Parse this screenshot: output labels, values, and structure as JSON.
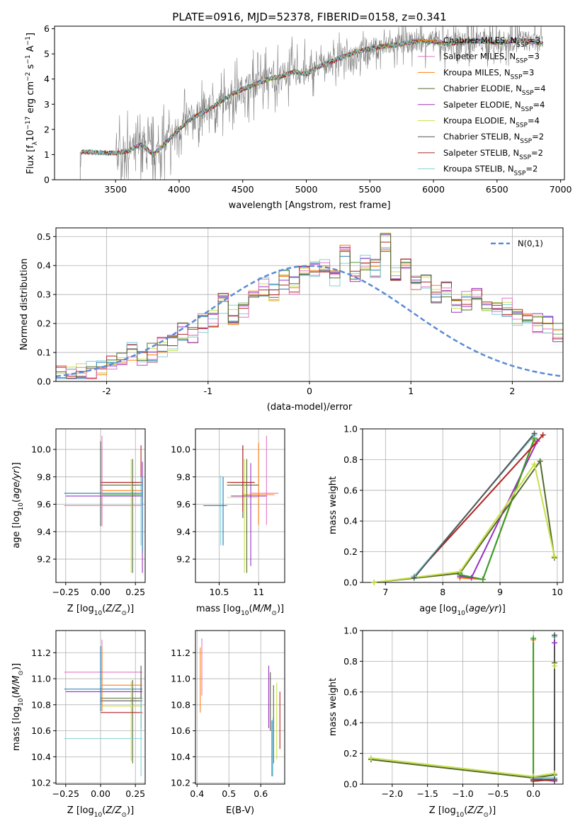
{
  "colors": {
    "series": [
      "#2ca02c",
      "#ff7f0e",
      "#1f77b4",
      "#556b2f",
      "#9b30c0",
      "#c8e04a",
      "#555555",
      "#b22222",
      "#80d0d8"
    ],
    "pink": "#e377c2",
    "observed": "#808080",
    "normal": "#5b8bd6"
  },
  "chart_data": [
    {
      "name": "spectrum",
      "type": "line",
      "title": "PLATE=0916, MJD=52378, FIBERID=0158, z=0.341",
      "xlabel": "wavelength [Angstrom, rest frame]",
      "ylabel": "Flux [f_λ 10^-17 erg cm^-2 s^-1 A^-1]",
      "xlim": [
        3020,
        7030
      ],
      "ylim": [
        0,
        6.1
      ],
      "xticks": [
        3500,
        4000,
        4500,
        5000,
        5500,
        6000,
        6500,
        7000
      ],
      "yticks": [
        0,
        1,
        2,
        3,
        4,
        5,
        6
      ],
      "grid": false,
      "legend": [
        "Chabrier MILES, N_SSP=3",
        "Salpeter MILES, N_SSP=3",
        "Kroupa MILES, N_SSP=3",
        "Chabrier ELODIE, N_SSP=4",
        "Salpeter ELODIE, N_SSP=4",
        "Kroupa ELODIE, N_SSP=4",
        "Chabrier STELIB, N_SSP=2",
        "Salpeter STELIB, N_SSP=2",
        "Kroupa STELIB, N_SSP=2"
      ],
      "legend_position": "right",
      "continuum": {
        "x": [
          3220,
          3230,
          3300,
          3500,
          3600,
          3700,
          3800,
          3900,
          4000,
          4100,
          4200,
          4300,
          4400,
          4500,
          4600,
          4700,
          4800,
          4900,
          5000,
          5100,
          5200,
          5300,
          5400,
          5500,
          5600,
          5700,
          5800,
          5900,
          6000,
          6100,
          6200,
          6300,
          6400,
          6500,
          6600,
          6700,
          6800,
          6860
        ],
        "y": [
          0.0,
          1.1,
          1.1,
          1.05,
          1.15,
          1.4,
          1.0,
          1.5,
          2.0,
          2.45,
          2.7,
          3.0,
          3.35,
          3.6,
          3.8,
          4.0,
          4.1,
          4.3,
          4.2,
          4.5,
          4.7,
          4.9,
          5.1,
          5.2,
          5.3,
          5.35,
          5.45,
          5.5,
          5.5,
          5.4,
          5.45,
          5.5,
          5.5,
          5.45,
          5.5,
          5.55,
          5.45,
          5.4
        ]
      }
    },
    {
      "name": "residuals",
      "type": "histogram",
      "xlabel": "(data-model)/error",
      "ylabel": "Normed distribution",
      "xlim": [
        -2.5,
        2.5
      ],
      "ylim": [
        0,
        0.53
      ],
      "xticks": [
        -2,
        -1,
        0,
        1,
        2
      ],
      "yticks": [
        0.0,
        0.1,
        0.2,
        0.3,
        0.4,
        0.5
      ],
      "grid": true,
      "legend": "N(0,1)",
      "legend_position": "top-right",
      "bin_width": 0.1,
      "bins_start": -2.5,
      "base_values": [
        0.03,
        0.03,
        0.03,
        0.04,
        0.05,
        0.07,
        0.08,
        0.1,
        0.08,
        0.1,
        0.12,
        0.14,
        0.17,
        0.16,
        0.2,
        0.22,
        0.27,
        0.23,
        0.25,
        0.3,
        0.33,
        0.31,
        0.35,
        0.33,
        0.37,
        0.38,
        0.41,
        0.36,
        0.44,
        0.38,
        0.42,
        0.39,
        0.48,
        0.37,
        0.4,
        0.34,
        0.35,
        0.3,
        0.32,
        0.27,
        0.28,
        0.3,
        0.27,
        0.24,
        0.26,
        0.22,
        0.23,
        0.2,
        0.2,
        0.17,
        0.15,
        0.16,
        0.13,
        0.13,
        0.12,
        0.1,
        0.08,
        0.09,
        0.07,
        0.06,
        0.06,
        0.05,
        0.05,
        0.04,
        0.04,
        0.04,
        0.03,
        0.03,
        0.03,
        0.03,
        0.03,
        0.02,
        0.03,
        0.03,
        0.03
      ]
    },
    {
      "name": "Z-age",
      "type": "errorbar",
      "xlabel": "Z [log10(Z/Z⊙)]",
      "ylabel": "age [log10(age/yr)]",
      "xlim": [
        -0.32,
        0.32
      ],
      "ylim": [
        9.03,
        10.15
      ],
      "xticks": [
        -0.25,
        0.0,
        0.25
      ],
      "xticklabels": [
        "−0.25",
        "0.00",
        "0.25"
      ],
      "yticks": [
        9.2,
        9.4,
        9.6,
        9.8,
        10.0
      ],
      "grid": true,
      "points": [
        {
          "c": 6,
          "x": 0.0,
          "y": 9.76,
          "xe": [
            -0.0,
            0.3
          ],
          "ye": [
            9.44,
            10.06
          ]
        },
        {
          "c": 1,
          "x": 0.01,
          "y": 9.7,
          "xe": [
            0.01,
            0.3
          ],
          "ye": [
            9.44,
            10.05
          ]
        },
        {
          "c": 0,
          "x": 0.01,
          "y": 9.67,
          "xe": [
            0.01,
            0.3
          ],
          "ye": [
            9.5,
            10.0
          ]
        },
        {
          "c": 3,
          "x": 0.23,
          "y": 9.74,
          "xe": [
            0.0,
            0.3
          ],
          "ye": [
            9.1,
            9.93
          ]
        },
        {
          "c": 5,
          "x": 0.22,
          "y": 9.66,
          "xe": [
            0.0,
            0.3
          ],
          "ye": [
            9.1,
            9.93
          ]
        },
        {
          "c": 4,
          "x": 0.3,
          "y": 9.66,
          "xe": [
            -0.25,
            0.3
          ],
          "ye": [
            9.1,
            9.91
          ]
        },
        {
          "c": 2,
          "x": 0.3,
          "y": 9.68,
          "xe": [
            -0.26,
            0.3
          ],
          "ye": [
            9.25,
            9.8
          ]
        },
        {
          "c": 7,
          "x": 0.29,
          "y": 9.76,
          "xe": [
            -0.0,
            0.3
          ],
          "ye": [
            9.6,
            10.03
          ]
        },
        {
          "c": 8,
          "x": 0.29,
          "y": 9.59,
          "xe": [
            -0.26,
            0.3
          ],
          "ye": [
            9.3,
            9.8
          ]
        },
        {
          "c": 9,
          "x": 0.01,
          "y": 9.59,
          "xe": [
            -0.26,
            0.3
          ],
          "ye": [
            9.45,
            10.1
          ]
        }
      ]
    },
    {
      "name": "mass-age",
      "type": "errorbar",
      "xlabel": "mass [log10(M/M⊙)]",
      "ylabel": "",
      "xlim": [
        10.2,
        11.33
      ],
      "ylim": [
        9.03,
        10.15
      ],
      "xticks": [
        10.5,
        11.0
      ],
      "yticks": [
        9.2,
        9.4,
        9.6,
        9.8,
        10.0
      ],
      "grid": true,
      "points": [
        {
          "c": 6,
          "x": 10.8,
          "y": 9.76,
          "xe": [
            10.65,
            10.95
          ],
          "ye": [
            9.5,
            10.03
          ]
        },
        {
          "c": 1,
          "x": 11.0,
          "y": 9.67,
          "xe": [
            10.8,
            11.2
          ],
          "ye": [
            9.45,
            10.05
          ]
        },
        {
          "c": 3,
          "x": 10.85,
          "y": 9.74,
          "xe": [
            10.6,
            11.0
          ],
          "ye": [
            9.1,
            9.93
          ]
        },
        {
          "c": 5,
          "x": 10.82,
          "y": 9.65,
          "xe": [
            10.6,
            11.0
          ],
          "ye": [
            9.1,
            9.93
          ]
        },
        {
          "c": 4,
          "x": 10.9,
          "y": 9.66,
          "xe": [
            10.65,
            11.1
          ],
          "ye": [
            9.15,
            9.9
          ]
        },
        {
          "c": 7,
          "x": 10.8,
          "y": 9.76,
          "xe": [
            10.6,
            10.95
          ],
          "ye": [
            9.55,
            10.03
          ]
        },
        {
          "c": 8,
          "x": 10.52,
          "y": 9.59,
          "xe": [
            10.3,
            10.6
          ],
          "ye": [
            9.3,
            9.81
          ]
        },
        {
          "c": 2,
          "x": 10.55,
          "y": 9.59,
          "xe": [
            10.3,
            10.6
          ],
          "ye": [
            9.3,
            9.8
          ]
        },
        {
          "c": 9,
          "x": 11.1,
          "y": 9.68,
          "xe": [
            10.9,
            11.25
          ],
          "ye": [
            9.45,
            10.1
          ]
        }
      ]
    },
    {
      "name": "age-weight",
      "type": "line",
      "xlabel": "age [log10(age/yr)]",
      "ylabel": "mass weight",
      "xlim": [
        6.6,
        10.1
      ],
      "ylim": [
        0,
        1
      ],
      "xticks": [
        7,
        8,
        9,
        10
      ],
      "yticks": [
        0.0,
        0.2,
        0.4,
        0.6,
        0.8,
        1.0
      ],
      "grid": true,
      "series": [
        {
          "c": 1,
          "x": [
            8.3,
            8.7,
            9.6
          ],
          "y": [
            0.03,
            0.02,
            0.93
          ]
        },
        {
          "c": 4,
          "x": [
            8.3,
            8.5,
            9.65
          ],
          "y": [
            0.04,
            0.03,
            0.92
          ]
        },
        {
          "c": 0,
          "x": [
            8.3,
            8.7,
            9.6
          ],
          "y": [
            0.05,
            0.02,
            0.94
          ]
        },
        {
          "c": 3,
          "x": [
            6.8,
            8.3,
            9.7,
            9.95
          ],
          "y": [
            0.0,
            0.06,
            0.79,
            0.16
          ]
        },
        {
          "c": 5,
          "x": [
            6.8,
            8.3,
            9.6,
            9.95
          ],
          "y": [
            0.0,
            0.07,
            0.77,
            0.17
          ]
        },
        {
          "c": 7,
          "x": [
            7.5,
            9.75
          ],
          "y": [
            0.04,
            0.96
          ]
        },
        {
          "c": 8,
          "x": [
            7.5,
            9.6
          ],
          "y": [
            0.04,
            0.96
          ]
        },
        {
          "c": 6,
          "x": [
            7.5,
            9.6
          ],
          "y": [
            0.03,
            0.97
          ]
        }
      ]
    },
    {
      "name": "Z-mass",
      "type": "errorbar",
      "xlabel": "Z [log10(Z/Z⊙)]",
      "ylabel": "mass [log10(M/M⊙)]",
      "xlim": [
        -0.32,
        0.32
      ],
      "ylim": [
        10.19,
        11.37
      ],
      "xticks": [
        -0.25,
        0.0,
        0.25
      ],
      "xticklabels": [
        "−0.25",
        "0.00",
        "0.25"
      ],
      "yticks": [
        10.2,
        10.4,
        10.6,
        10.8,
        11.0,
        11.2
      ],
      "grid": true,
      "points": [
        {
          "c": 9,
          "x": 0.01,
          "y": 11.05,
          "xe": [
            -0.26,
            0.3
          ],
          "ye": [
            10.75,
            11.3
          ]
        },
        {
          "c": 2,
          "x": 0.0,
          "y": 10.92,
          "xe": [
            -0.26,
            0.3
          ],
          "ye": [
            10.75,
            11.25
          ]
        },
        {
          "c": 4,
          "x": 0.01,
          "y": 10.9,
          "xe": [
            -0.25,
            0.3
          ],
          "ye": [
            10.8,
            11.2
          ]
        },
        {
          "c": 3,
          "x": 0.23,
          "y": 10.85,
          "xe": [
            0.0,
            0.3
          ],
          "ye": [
            10.35,
            10.99
          ]
        },
        {
          "c": 5,
          "x": 0.22,
          "y": 10.79,
          "xe": [
            0.0,
            0.3
          ],
          "ye": [
            10.37,
            10.98
          ]
        },
        {
          "c": 7,
          "x": 0.29,
          "y": 10.74,
          "xe": [
            -0.0,
            0.3
          ],
          "ye": [
            10.6,
            11.0
          ]
        },
        {
          "c": 6,
          "x": 0.29,
          "y": 10.83,
          "xe": [
            0.0,
            0.3
          ],
          "ye": [
            10.62,
            11.1
          ]
        },
        {
          "c": 8,
          "x": 0.29,
          "y": 10.54,
          "xe": [
            -0.26,
            0.3
          ],
          "ye": [
            10.25,
            10.85
          ]
        },
        {
          "c": 1,
          "x": 0.01,
          "y": 10.95,
          "xe": [
            0.01,
            0.3
          ],
          "ye": [
            10.75,
            11.25
          ]
        }
      ]
    },
    {
      "name": "ebv-mass",
      "type": "errorbar",
      "xlabel": "E(B-V)",
      "ylabel": "",
      "xlim": [
        0.395,
        0.675
      ],
      "ylim": [
        10.19,
        11.37
      ],
      "xticks": [
        0.4,
        0.5,
        0.6
      ],
      "yticks": [
        10.2,
        10.4,
        10.6,
        10.8,
        11.0,
        11.2
      ],
      "grid": true,
      "points": [
        {
          "c": 9,
          "x": 0.415,
          "y": 11.1,
          "xe": [
            0.415,
            0.415
          ],
          "ye": [
            10.87,
            11.31
          ]
        },
        {
          "c": 1,
          "x": 0.41,
          "y": 11.0,
          "xe": [
            0.41,
            0.41
          ],
          "ye": [
            10.74,
            11.24
          ]
        },
        {
          "c": 4,
          "x": 0.625,
          "y": 10.85,
          "xe": [
            0.625,
            0.625
          ],
          "ye": [
            10.62,
            11.1
          ]
        },
        {
          "c": 6,
          "x": 0.63,
          "y": 10.82,
          "xe": [
            0.63,
            0.63
          ],
          "ye": [
            10.6,
            11.05
          ]
        },
        {
          "c": 5,
          "x": 0.65,
          "y": 10.8,
          "xe": [
            0.65,
            0.65
          ],
          "ye": [
            10.38,
            10.97
          ]
        },
        {
          "c": 3,
          "x": 0.64,
          "y": 10.7,
          "xe": [
            0.64,
            0.64
          ],
          "ye": [
            10.35,
            10.95
          ]
        },
        {
          "c": 7,
          "x": 0.66,
          "y": 10.7,
          "xe": [
            0.66,
            0.66
          ],
          "ye": [
            10.46,
            10.9
          ]
        },
        {
          "c": 8,
          "x": 0.638,
          "y": 10.5,
          "xe": [
            0.638,
            0.638
          ],
          "ye": [
            10.25,
            10.7
          ]
        },
        {
          "c": 2,
          "x": 0.635,
          "y": 10.5,
          "xe": [
            0.635,
            0.635
          ],
          "ye": [
            10.25,
            10.68
          ]
        }
      ]
    },
    {
      "name": "Z-weight",
      "type": "line",
      "xlabel": "Z [log10(Z/Z⊙)]",
      "ylabel": "mass weight",
      "xlim": [
        -2.42,
        0.42
      ],
      "ylim": [
        0,
        1
      ],
      "xticks": [
        -2.0,
        -1.5,
        -1.0,
        -0.5,
        0.0
      ],
      "xticklabels": [
        "−2.0",
        "−1.5",
        "−1.0",
        "−0.5",
        "0.0"
      ],
      "yticks": [
        0.0,
        0.2,
        0.4,
        0.6,
        0.8,
        1.0
      ],
      "grid": true,
      "series": [
        {
          "c": 1,
          "x": [
            0.0,
            0.0,
            0.3,
            0.3
          ],
          "y": [
            0.94,
            0.03,
            0.02,
            0.03
          ]
        },
        {
          "c": 0,
          "x": [
            0.0,
            0.0,
            0.3
          ],
          "y": [
            0.95,
            0.02,
            0.03
          ]
        },
        {
          "c": 4,
          "x": [
            0.0,
            0.3,
            0.3
          ],
          "y": [
            0.04,
            0.02,
            0.92
          ]
        },
        {
          "c": 7,
          "x": [
            0.0,
            0.3,
            0.3
          ],
          "y": [
            0.02,
            0.03,
            0.96
          ]
        },
        {
          "c": 3,
          "x": [
            -2.3,
            0.0,
            0.3,
            0.3
          ],
          "y": [
            0.16,
            0.04,
            0.06,
            0.79
          ]
        },
        {
          "c": 5,
          "x": [
            -2.3,
            0.0,
            0.3,
            0.3
          ],
          "y": [
            0.17,
            0.05,
            0.07,
            0.77
          ]
        },
        {
          "c": 8,
          "x": [
            0.0,
            0.3,
            0.3
          ],
          "y": [
            0.04,
            0.04,
            0.96
          ]
        },
        {
          "c": 6,
          "x": [
            0.0,
            0.3,
            0.3
          ],
          "y": [
            0.03,
            0.03,
            0.97
          ]
        }
      ]
    }
  ]
}
